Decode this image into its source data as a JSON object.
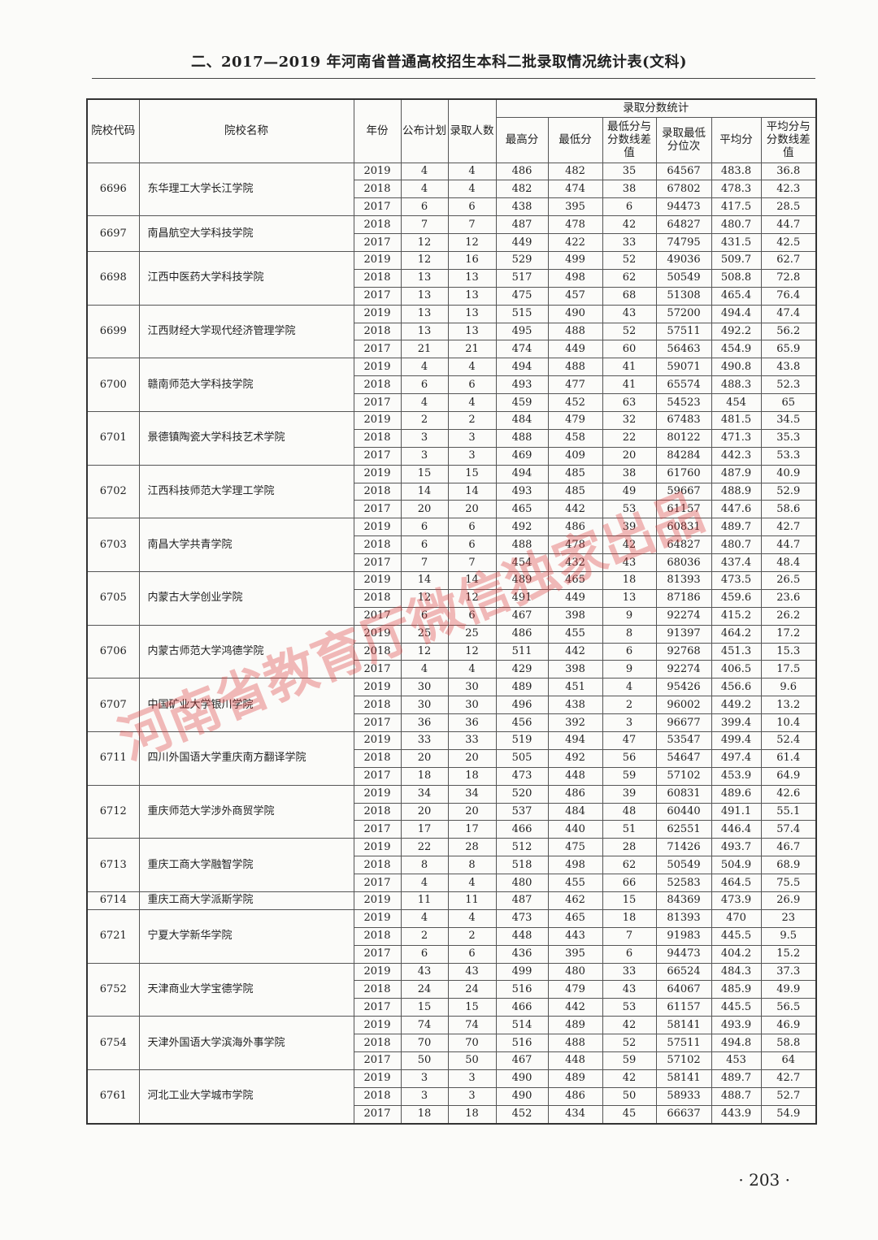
{
  "title": "二、2017—2019 年河南省普通高校招生本科二批录取情况统计表(文科)",
  "headers": {
    "code": "院校代码",
    "name": "院校名称",
    "year": "年份",
    "plan": "公布计划",
    "admitted": "录取人数",
    "group": "录取分数统计",
    "max": "最高分",
    "min": "最低分",
    "min_diff": "最低分与分数线差值",
    "rank": "录取最低分位次",
    "avg": "平均分",
    "avg_diff": "平均分与分数线差值"
  },
  "schools": [
    {
      "code": "6696",
      "name": "东华理工大学长江学院",
      "rows": [
        [
          "2019",
          "4",
          "4",
          "486",
          "482",
          "35",
          "64567",
          "483.8",
          "36.8"
        ],
        [
          "2018",
          "4",
          "4",
          "482",
          "474",
          "38",
          "67802",
          "478.3",
          "42.3"
        ],
        [
          "2017",
          "6",
          "6",
          "438",
          "395",
          "6",
          "94473",
          "417.5",
          "28.5"
        ]
      ]
    },
    {
      "code": "6697",
      "name": "南昌航空大学科技学院",
      "rows": [
        [
          "2018",
          "7",
          "7",
          "487",
          "478",
          "42",
          "64827",
          "480.7",
          "44.7"
        ],
        [
          "2017",
          "12",
          "12",
          "449",
          "422",
          "33",
          "74795",
          "431.5",
          "42.5"
        ]
      ]
    },
    {
      "code": "6698",
      "name": "江西中医药大学科技学院",
      "rows": [
        [
          "2019",
          "12",
          "16",
          "529",
          "499",
          "52",
          "49036",
          "509.7",
          "62.7"
        ],
        [
          "2018",
          "13",
          "13",
          "517",
          "498",
          "62",
          "50549",
          "508.8",
          "72.8"
        ],
        [
          "2017",
          "13",
          "13",
          "475",
          "457",
          "68",
          "51308",
          "465.4",
          "76.4"
        ]
      ]
    },
    {
      "code": "6699",
      "name": "江西财经大学现代经济管理学院",
      "rows": [
        [
          "2019",
          "13",
          "13",
          "515",
          "490",
          "43",
          "57200",
          "494.4",
          "47.4"
        ],
        [
          "2018",
          "13",
          "13",
          "495",
          "488",
          "52",
          "57511",
          "492.2",
          "56.2"
        ],
        [
          "2017",
          "21",
          "21",
          "474",
          "449",
          "60",
          "56463",
          "454.9",
          "65.9"
        ]
      ]
    },
    {
      "code": "6700",
      "name": "赣南师范大学科技学院",
      "rows": [
        [
          "2019",
          "4",
          "4",
          "494",
          "488",
          "41",
          "59071",
          "490.8",
          "43.8"
        ],
        [
          "2018",
          "6",
          "6",
          "493",
          "477",
          "41",
          "65574",
          "488.3",
          "52.3"
        ],
        [
          "2017",
          "4",
          "4",
          "459",
          "452",
          "63",
          "54523",
          "454",
          "65"
        ]
      ]
    },
    {
      "code": "6701",
      "name": "景德镇陶瓷大学科技艺术学院",
      "rows": [
        [
          "2019",
          "2",
          "2",
          "484",
          "479",
          "32",
          "67483",
          "481.5",
          "34.5"
        ],
        [
          "2018",
          "3",
          "3",
          "488",
          "458",
          "22",
          "80122",
          "471.3",
          "35.3"
        ],
        [
          "2017",
          "3",
          "3",
          "469",
          "409",
          "20",
          "84284",
          "442.3",
          "53.3"
        ]
      ]
    },
    {
      "code": "6702",
      "name": "江西科技师范大学理工学院",
      "rows": [
        [
          "2019",
          "15",
          "15",
          "494",
          "485",
          "38",
          "61760",
          "487.9",
          "40.9"
        ],
        [
          "2018",
          "14",
          "14",
          "493",
          "485",
          "49",
          "59667",
          "488.9",
          "52.9"
        ],
        [
          "2017",
          "20",
          "20",
          "465",
          "442",
          "53",
          "61157",
          "447.6",
          "58.6"
        ]
      ]
    },
    {
      "code": "6703",
      "name": "南昌大学共青学院",
      "rows": [
        [
          "2019",
          "6",
          "6",
          "492",
          "486",
          "39",
          "60831",
          "489.7",
          "42.7"
        ],
        [
          "2018",
          "6",
          "6",
          "488",
          "478",
          "42",
          "64827",
          "480.7",
          "44.7"
        ],
        [
          "2017",
          "7",
          "7",
          "454",
          "432",
          "43",
          "68036",
          "437.4",
          "48.4"
        ]
      ]
    },
    {
      "code": "6705",
      "name": "内蒙古大学创业学院",
      "rows": [
        [
          "2019",
          "14",
          "14",
          "489",
          "465",
          "18",
          "81393",
          "473.5",
          "26.5"
        ],
        [
          "2018",
          "12",
          "12",
          "491",
          "449",
          "13",
          "87186",
          "459.6",
          "23.6"
        ],
        [
          "2017",
          "6",
          "6",
          "467",
          "398",
          "9",
          "92274",
          "415.2",
          "26.2"
        ]
      ]
    },
    {
      "code": "6706",
      "name": "内蒙古师范大学鸿德学院",
      "rows": [
        [
          "2019",
          "25",
          "25",
          "486",
          "455",
          "8",
          "91397",
          "464.2",
          "17.2"
        ],
        [
          "2018",
          "12",
          "12",
          "511",
          "442",
          "6",
          "92768",
          "451.3",
          "15.3"
        ],
        [
          "2017",
          "4",
          "4",
          "429",
          "398",
          "9",
          "92274",
          "406.5",
          "17.5"
        ]
      ]
    },
    {
      "code": "6707",
      "name": "中国矿业大学银川学院",
      "rows": [
        [
          "2019",
          "30",
          "30",
          "489",
          "451",
          "4",
          "95426",
          "456.6",
          "9.6"
        ],
        [
          "2018",
          "30",
          "30",
          "496",
          "438",
          "2",
          "96002",
          "449.2",
          "13.2"
        ],
        [
          "2017",
          "36",
          "36",
          "456",
          "392",
          "3",
          "96677",
          "399.4",
          "10.4"
        ]
      ]
    },
    {
      "code": "6711",
      "name": "四川外国语大学重庆南方翻译学院",
      "rows": [
        [
          "2019",
          "33",
          "33",
          "519",
          "494",
          "47",
          "53547",
          "499.4",
          "52.4"
        ],
        [
          "2018",
          "20",
          "20",
          "505",
          "492",
          "56",
          "54647",
          "497.4",
          "61.4"
        ],
        [
          "2017",
          "18",
          "18",
          "473",
          "448",
          "59",
          "57102",
          "453.9",
          "64.9"
        ]
      ]
    },
    {
      "code": "6712",
      "name": "重庆师范大学涉外商贸学院",
      "rows": [
        [
          "2019",
          "34",
          "34",
          "520",
          "486",
          "39",
          "60831",
          "489.6",
          "42.6"
        ],
        [
          "2018",
          "20",
          "20",
          "537",
          "484",
          "48",
          "60440",
          "491.1",
          "55.1"
        ],
        [
          "2017",
          "17",
          "17",
          "466",
          "440",
          "51",
          "62551",
          "446.4",
          "57.4"
        ]
      ]
    },
    {
      "code": "6713",
      "name": "重庆工商大学融智学院",
      "rows": [
        [
          "2019",
          "22",
          "28",
          "512",
          "475",
          "28",
          "71426",
          "493.7",
          "46.7"
        ],
        [
          "2018",
          "8",
          "8",
          "518",
          "498",
          "62",
          "50549",
          "504.9",
          "68.9"
        ],
        [
          "2017",
          "4",
          "4",
          "480",
          "455",
          "66",
          "52583",
          "464.5",
          "75.5"
        ]
      ]
    },
    {
      "code": "6714",
      "name": "重庆工商大学派斯学院",
      "rows": [
        [
          "2019",
          "11",
          "11",
          "487",
          "462",
          "15",
          "84369",
          "473.9",
          "26.9"
        ]
      ]
    },
    {
      "code": "6721",
      "name": "宁夏大学新华学院",
      "rows": [
        [
          "2019",
          "4",
          "4",
          "473",
          "465",
          "18",
          "81393",
          "470",
          "23"
        ],
        [
          "2018",
          "2",
          "2",
          "448",
          "443",
          "7",
          "91983",
          "445.5",
          "9.5"
        ],
        [
          "2017",
          "6",
          "6",
          "436",
          "395",
          "6",
          "94473",
          "404.2",
          "15.2"
        ]
      ]
    },
    {
      "code": "6752",
      "name": "天津商业大学宝德学院",
      "rows": [
        [
          "2019",
          "43",
          "43",
          "499",
          "480",
          "33",
          "66524",
          "484.3",
          "37.3"
        ],
        [
          "2018",
          "24",
          "24",
          "516",
          "479",
          "43",
          "64067",
          "485.9",
          "49.9"
        ],
        [
          "2017",
          "15",
          "15",
          "466",
          "442",
          "53",
          "61157",
          "445.5",
          "56.5"
        ]
      ]
    },
    {
      "code": "6754",
      "name": "天津外国语大学滨海外事学院",
      "rows": [
        [
          "2019",
          "74",
          "74",
          "514",
          "489",
          "42",
          "58141",
          "493.9",
          "46.9"
        ],
        [
          "2018",
          "70",
          "70",
          "516",
          "488",
          "52",
          "57511",
          "494.8",
          "58.8"
        ],
        [
          "2017",
          "50",
          "50",
          "467",
          "448",
          "59",
          "57102",
          "453",
          "64"
        ]
      ]
    },
    {
      "code": "6761",
      "name": "河北工业大学城市学院",
      "rows": [
        [
          "2019",
          "3",
          "3",
          "490",
          "489",
          "42",
          "58141",
          "489.7",
          "42.7"
        ],
        [
          "2018",
          "3",
          "3",
          "490",
          "486",
          "50",
          "58933",
          "488.7",
          "52.7"
        ],
        [
          "2017",
          "18",
          "18",
          "452",
          "434",
          "45",
          "66637",
          "443.9",
          "54.9"
        ]
      ]
    }
  ],
  "watermark": {
    "text": "河南省教育厅微信独家出品",
    "color": "#dc3c3c"
  },
  "page_number": "· 203 ·"
}
